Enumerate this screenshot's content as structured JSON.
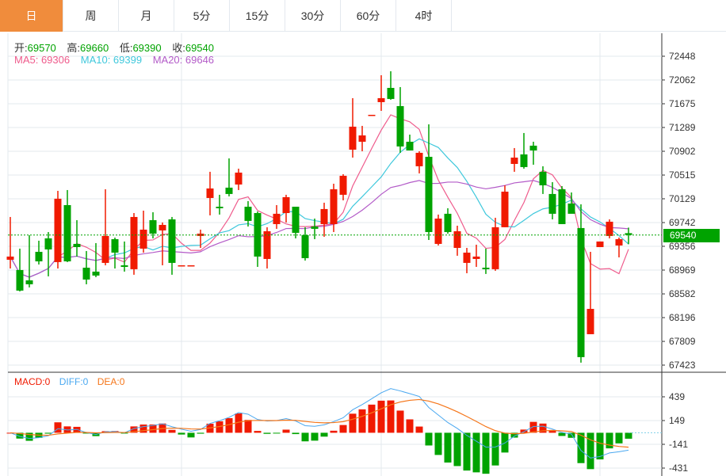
{
  "tabs": [
    {
      "label": "日",
      "active": true
    },
    {
      "label": "周"
    },
    {
      "label": "月"
    },
    {
      "label": "5分"
    },
    {
      "label": "15分"
    },
    {
      "label": "30分"
    },
    {
      "label": "60分"
    },
    {
      "label": "4时"
    }
  ],
  "ohlc_legend": {
    "open_label": "开:",
    "open": "69570",
    "high_label": "高:",
    "high": "69660",
    "low_label": "低:",
    "low": "69390",
    "close_label": "收:",
    "close": "69540"
  },
  "ma_legend": {
    "ma5": "MA5: 69306",
    "ma10": "MA10: 69399",
    "ma20": "MA20: 69646"
  },
  "macd_legend": {
    "macd": "MACD:0",
    "diff": "DIFF:0",
    "dea": "DEA:0"
  },
  "current_price": "69540",
  "colors": {
    "up": "#f01a00",
    "down": "#00a300",
    "ma5": "#ef5b8c",
    "ma10": "#3fc8dc",
    "ma20": "#b35bc8",
    "diff": "#4aa8f0",
    "dea": "#f5761a",
    "tab_active": "#f08c3c"
  },
  "chart_data": {
    "type": "candlestick",
    "price_ticks": [
      72448,
      72062,
      71675,
      71289,
      70902,
      70515,
      70129,
      69742,
      69356,
      68969,
      68582,
      68196,
      67809,
      67423
    ],
    "macd_ticks": [
      439,
      149,
      -141,
      -431
    ],
    "candles": [
      [
        69137,
        69833,
        68995,
        69189
      ],
      [
        68970,
        69318,
        68622,
        68635
      ],
      [
        68802,
        69537,
        68687,
        68738
      ],
      [
        69266,
        69447,
        69060,
        69111
      ],
      [
        69485,
        69588,
        68867,
        69305
      ],
      [
        69099,
        70258,
        68995,
        70130
      ],
      [
        70026,
        70271,
        69099,
        69111
      ],
      [
        69395,
        69781,
        69189,
        69343
      ],
      [
        69008,
        69279,
        68738,
        68815
      ],
      [
        68944,
        69408,
        68854,
        68880
      ],
      [
        69086,
        70284,
        69047,
        69524
      ],
      [
        69472,
        69498,
        68995,
        69253
      ],
      [
        69047,
        69434,
        68944,
        69021
      ],
      [
        68983,
        69897,
        68893,
        69833
      ],
      [
        69318,
        69936,
        69253,
        69627
      ],
      [
        69781,
        69910,
        69485,
        69562
      ],
      [
        69614,
        69743,
        69047,
        69704
      ],
      [
        69794,
        69833,
        68893,
        69086
      ],
      [
        69047,
        69047,
        69047,
        69047
      ],
      [
        69047,
        69047,
        69047,
        69047
      ],
      [
        69524,
        69627,
        69330,
        69562
      ],
      [
        70142,
        70568,
        69859,
        70297
      ],
      [
        70000,
        70194,
        69872,
        69975
      ],
      [
        70310,
        70786,
        70168,
        70207
      ],
      [
        70361,
        70619,
        70271,
        70555
      ],
      [
        70000,
        70091,
        69678,
        69769
      ],
      [
        69897,
        69923,
        69021,
        69189
      ],
      [
        69150,
        69666,
        68995,
        69601
      ],
      [
        69717,
        70026,
        69640,
        69885
      ],
      [
        69897,
        70194,
        69743,
        70155
      ],
      [
        70000,
        70000,
        69485,
        69575
      ],
      [
        69537,
        69666,
        69124,
        69163
      ],
      [
        69678,
        69807,
        69472,
        69640
      ],
      [
        69717,
        70065,
        69511,
        69962
      ],
      [
        69717,
        70374,
        69588,
        70284
      ],
      [
        70194,
        70529,
        70104,
        70503
      ],
      [
        70928,
        71766,
        70799,
        71302
      ],
      [
        71057,
        71315,
        70902,
        71160
      ],
      [
        71495,
        71495,
        71495,
        71495
      ],
      [
        71701,
        72139,
        71559,
        71766
      ],
      [
        71933,
        72204,
        71740,
        71753
      ],
      [
        71637,
        71946,
        70877,
        70980
      ],
      [
        71057,
        71173,
        70915,
        70915
      ],
      [
        70658,
        70902,
        70542,
        70877
      ],
      [
        70812,
        71340,
        69459,
        69588
      ],
      [
        69395,
        69872,
        69369,
        69807
      ],
      [
        69885,
        69975,
        69562,
        69588
      ],
      [
        69330,
        69691,
        69202,
        69601
      ],
      [
        69086,
        69330,
        68918,
        69253
      ],
      [
        69150,
        69382,
        69021,
        69189
      ],
      [
        69008,
        69318,
        68906,
        68983
      ],
      [
        68983,
        69820,
        68957,
        69666
      ],
      [
        69666,
        70348,
        69666,
        70245
      ],
      [
        70696,
        70954,
        70568,
        70799
      ],
      [
        70851,
        71199,
        70619,
        70645
      ],
      [
        70993,
        71057,
        70683,
        70915
      ],
      [
        70568,
        70658,
        70207,
        70348
      ],
      [
        70207,
        70400,
        69794,
        69885
      ],
      [
        70284,
        70335,
        69717,
        69717
      ],
      [
        70052,
        70232,
        69897,
        69885
      ],
      [
        69653,
        70039,
        67463,
        67553
      ],
      [
        67926,
        69266,
        67926,
        68338
      ],
      [
        69343,
        69434,
        69343,
        69434
      ],
      [
        69524,
        69794,
        69485,
        69756
      ],
      [
        69369,
        69498,
        69176,
        69472
      ],
      [
        69570,
        69660,
        69390,
        69540
      ]
    ]
  }
}
